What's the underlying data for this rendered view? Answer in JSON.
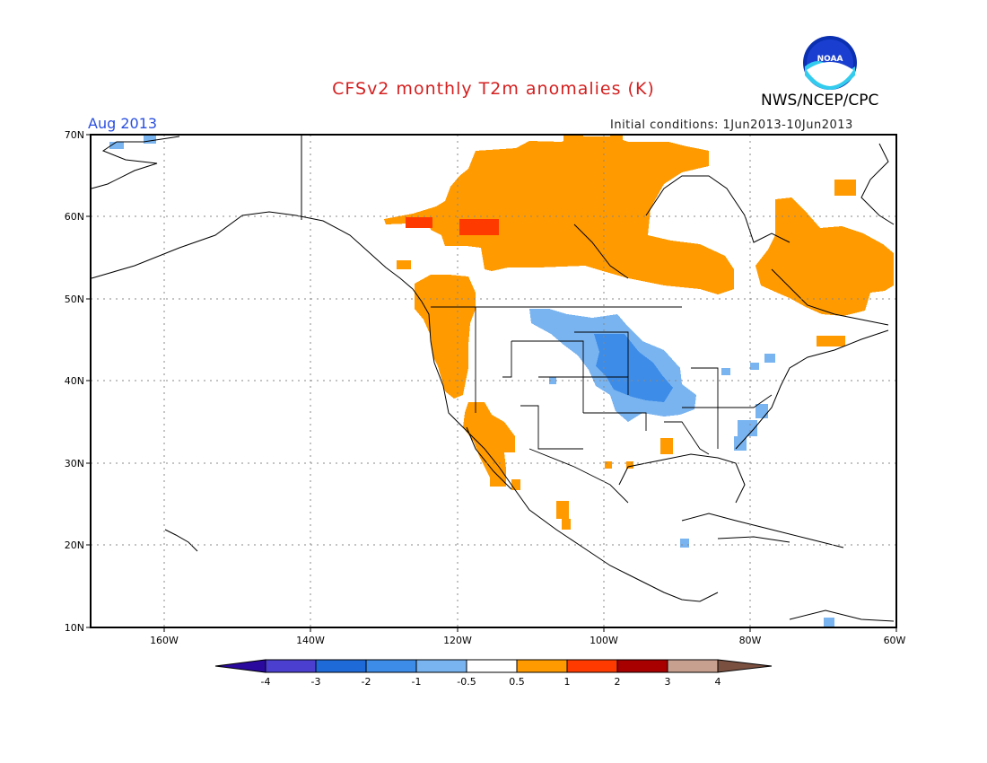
{
  "header": {
    "title": "CFSv2 monthly T2m anomalies (K)",
    "agency": "NWS/NCEP/CPC",
    "period": "Aug 2013",
    "initial_conditions": "Initial conditions: 1Jun2013-10Jun2013",
    "logo_text": "NOAA"
  },
  "map": {
    "lat_labels": [
      "70N",
      "60N",
      "50N",
      "40N",
      "30N",
      "20N",
      "10N"
    ],
    "lon_labels": [
      "160W",
      "140W",
      "120W",
      "100W",
      "80W",
      "60W"
    ],
    "lat_range": [
      10,
      70
    ],
    "lon_range": [
      -170,
      -60
    ],
    "grid": "dotted"
  },
  "colorbar": {
    "labels": [
      "-4",
      "-3",
      "-2",
      "-1",
      "-0.5",
      "0.5",
      "1",
      "2",
      "3",
      "4"
    ],
    "colors": [
      "#2a0a9e",
      "#4b3fd0",
      "#1e6ad8",
      "#3d8ce8",
      "#79b4f0",
      "#ffffff",
      "#ff9a00",
      "#ff3a00",
      "#a80000",
      "#c8a090",
      "#7a5040"
    ]
  },
  "anomaly_fields": [
    {
      "name": "canada-north-warm",
      "value": 0.8,
      "color": "#ff9a00"
    },
    {
      "name": "quebec-warm",
      "value": 0.8,
      "color": "#ff9a00"
    },
    {
      "name": "west-coast-warm",
      "value": 0.7,
      "color": "#ff9a00"
    },
    {
      "name": "nw-canada-hot",
      "value": 1.3,
      "color": "#ff3a00"
    },
    {
      "name": "midwest-cool",
      "value": -0.8,
      "color": "#79b4f0"
    },
    {
      "name": "midwest-cooler",
      "value": -1.2,
      "color": "#3d8ce8"
    }
  ]
}
